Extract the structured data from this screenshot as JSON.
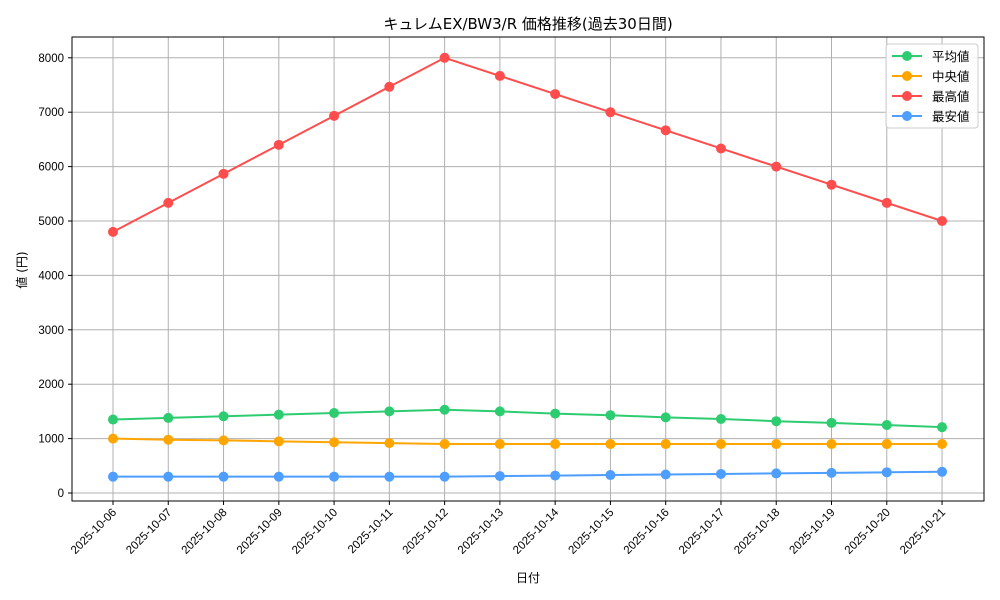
{
  "chart_data": {
    "type": "line",
    "title": "キュレムEX/BW3/R 価格推移(過去30日間)",
    "xlabel": "日付",
    "ylabel": "値 (円)",
    "ylim": [
      -150,
      8370
    ],
    "yticks": [
      0,
      1000,
      2000,
      3000,
      4000,
      5000,
      6000,
      7000,
      8000
    ],
    "grid": true,
    "legend_position": "upper right",
    "categories": [
      "2025-10-06",
      "2025-10-07",
      "2025-10-08",
      "2025-10-09",
      "2025-10-10",
      "2025-10-11",
      "2025-10-12",
      "2025-10-13",
      "2025-10-14",
      "2025-10-15",
      "2025-10-16",
      "2025-10-17",
      "2025-10-18",
      "2025-10-19",
      "2025-10-20",
      "2025-10-21"
    ],
    "series": [
      {
        "name": "平均値",
        "color": "#2ecc71",
        "values": [
          1350,
          1380,
          1410,
          1440,
          1470,
          1500,
          1530,
          1500,
          1460,
          1430,
          1390,
          1360,
          1320,
          1290,
          1250,
          1210
        ]
      },
      {
        "name": "中央値",
        "color": "#ffa500",
        "values": [
          1000,
          980,
          967,
          950,
          933,
          917,
          900,
          900,
          900,
          900,
          900,
          900,
          900,
          900,
          900,
          900
        ]
      },
      {
        "name": "最高値",
        "color": "#ff4d4d",
        "values": [
          4800,
          5333,
          5867,
          6400,
          6933,
          7467,
          8000,
          7667,
          7333,
          7000,
          6667,
          6333,
          6000,
          5667,
          5333,
          5000
        ]
      },
      {
        "name": "最安値",
        "color": "#4d9eff",
        "values": [
          300,
          300,
          300,
          300,
          300,
          300,
          300,
          310,
          320,
          330,
          340,
          350,
          360,
          370,
          380,
          390
        ]
      }
    ]
  }
}
